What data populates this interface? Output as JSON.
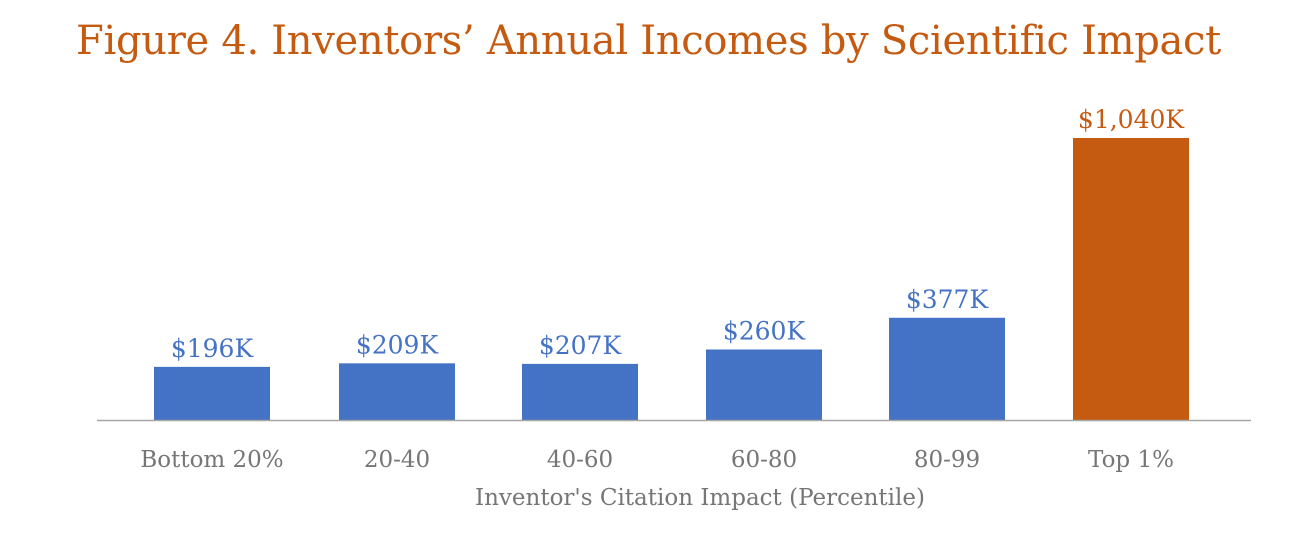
{
  "chart_data": {
    "type": "bar",
    "title": "Figure 4. Inventors’ Annual Incomes by Scientific Impact",
    "xlabel": "Inventor's Citation Impact (Percentile)",
    "ylabel": "",
    "categories": [
      "Bottom 20%",
      "20-40",
      "40-60",
      "60-80",
      "80-99",
      "Top 1%"
    ],
    "values": [
      196,
      209,
      207,
      260,
      377,
      1040
    ],
    "value_labels": [
      "$196K",
      "$209K",
      "$207K",
      "$260K",
      "$377K",
      "$1,040K"
    ],
    "unit": "thousand USD",
    "ylim": [
      0,
      1040
    ],
    "grid": false,
    "legend": "none",
    "colors": [
      "#4472c4",
      "#4472c4",
      "#4472c4",
      "#4472c4",
      "#4472c4",
      "#c55a11"
    ],
    "label_colors": [
      "#4472c4",
      "#4472c4",
      "#4472c4",
      "#4472c4",
      "#4472c4",
      "#c55a11"
    ],
    "axis_color": "#a6a6a6"
  }
}
